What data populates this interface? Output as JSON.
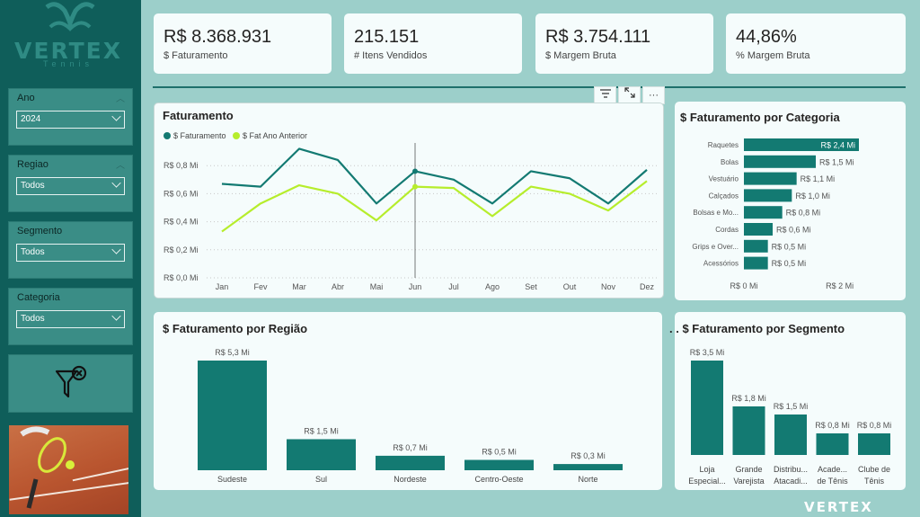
{
  "brand": {
    "name": "VERTEX",
    "subtitle": "Tennis",
    "footer": "VERTEX"
  },
  "colors": {
    "sidebar": "#0f5e5a",
    "accent": "#137a72",
    "lime": "#b6ed2c",
    "background": "#9ccfca"
  },
  "filters": [
    {
      "label": "Ano",
      "value": "2024"
    },
    {
      "label": "Regiao",
      "value": "Todos"
    },
    {
      "label": "Segmento",
      "value": "Todos"
    },
    {
      "label": "Categoria",
      "value": "Todos"
    }
  ],
  "clear_filters_icon": "filter-clear-icon",
  "kpis": [
    {
      "value": "R$ 8.368.931",
      "label": "$ Faturamento"
    },
    {
      "value": "215.151",
      "label": "# Itens Vendidos"
    },
    {
      "value": "R$ 3.754.111",
      "label": "$ Margem Bruta"
    },
    {
      "value": "44,86%",
      "label": "% Margem Bruta"
    }
  ],
  "toolbar": {
    "filter_icon": "filter-icon",
    "focus_icon": "expand-icon",
    "more": "···"
  },
  "line_panel": {
    "title": "Faturamento",
    "legend": [
      "$ Faturamento",
      "$ Fat Ano Anterior"
    ]
  },
  "category_panel": {
    "title": "$ Faturamento por Categoria"
  },
  "region_panel": {
    "title": "$ Faturamento por Região"
  },
  "segment_panel": {
    "title": "$ Faturamento por Segmento",
    "prefix": ". ."
  },
  "chart_data": [
    {
      "type": "line",
      "title": "Faturamento",
      "categories": [
        "Jan",
        "Fev",
        "Mar",
        "Abr",
        "Mai",
        "Jun",
        "Jul",
        "Ago",
        "Set",
        "Out",
        "Nov",
        "Dez"
      ],
      "series": [
        {
          "name": "$ Faturamento",
          "values": [
            0.67,
            0.65,
            0.92,
            0.84,
            0.53,
            0.76,
            0.7,
            0.53,
            0.76,
            0.71,
            0.53,
            0.77
          ],
          "color": "#137a72"
        },
        {
          "name": "$ Fat Ano Anterior",
          "values": [
            0.33,
            0.53,
            0.66,
            0.6,
            0.41,
            0.65,
            0.64,
            0.44,
            0.65,
            0.6,
            0.48,
            0.69
          ],
          "color": "#b6ed2c"
        }
      ],
      "yticks": [
        "R$ 0,0 Mi",
        "R$ 0,2 Mi",
        "R$ 0,4 Mi",
        "R$ 0,6 Mi",
        "R$ 0,8 Mi"
      ],
      "ylim": [
        0,
        1.0
      ],
      "highlight": "Jun",
      "legend_position": "top-left",
      "grid": true
    },
    {
      "type": "bar",
      "orientation": "horizontal",
      "title": "$ Faturamento por Categoria",
      "categories": [
        "Raquetes",
        "Bolas",
        "Vestuário",
        "Calçados",
        "Bolsas e Mo...",
        "Cordas",
        "Grips e Over...",
        "Acessórios"
      ],
      "values": [
        2.4,
        1.5,
        1.1,
        1.0,
        0.8,
        0.6,
        0.5,
        0.5
      ],
      "labels": [
        "R$ 2,4 Mi",
        "R$ 1,5 Mi",
        "R$ 1,1 Mi",
        "R$ 1,0 Mi",
        "R$ 0,8 Mi",
        "R$ 0,6 Mi",
        "R$ 0,5 Mi",
        "R$ 0,5 Mi"
      ],
      "xticks": [
        "R$ 0 Mi",
        "R$ 2 Mi"
      ],
      "xlim": [
        0,
        2.4
      ]
    },
    {
      "type": "bar",
      "title": "$ Faturamento por Região",
      "categories": [
        "Sudeste",
        "Sul",
        "Nordeste",
        "Centro-Oeste",
        "Norte"
      ],
      "values": [
        5.3,
        1.5,
        0.7,
        0.5,
        0.3
      ],
      "labels": [
        "R$ 5,3 Mi",
        "R$ 1,5 Mi",
        "R$ 0,7 Mi",
        "R$ 0,5 Mi",
        "R$ 0,3 Mi"
      ],
      "ylim": [
        0,
        5.3
      ]
    },
    {
      "type": "bar",
      "title": "$ Faturamento por Segmento",
      "categories": [
        [
          "Loja",
          "Especial..."
        ],
        [
          "Grande",
          "Varejista"
        ],
        [
          "Distribu...",
          "Atacadi..."
        ],
        [
          "Acade...",
          "de Tênis"
        ],
        [
          "Clube de",
          "Tênis"
        ]
      ],
      "values": [
        3.5,
        1.8,
        1.5,
        0.8,
        0.8
      ],
      "labels": [
        "R$ 3,5 Mi",
        "R$ 1,8 Mi",
        "R$ 1,5 Mi",
        "R$ 0,8 Mi",
        "R$ 0,8 Mi"
      ],
      "ylim": [
        0,
        3.5
      ]
    }
  ]
}
